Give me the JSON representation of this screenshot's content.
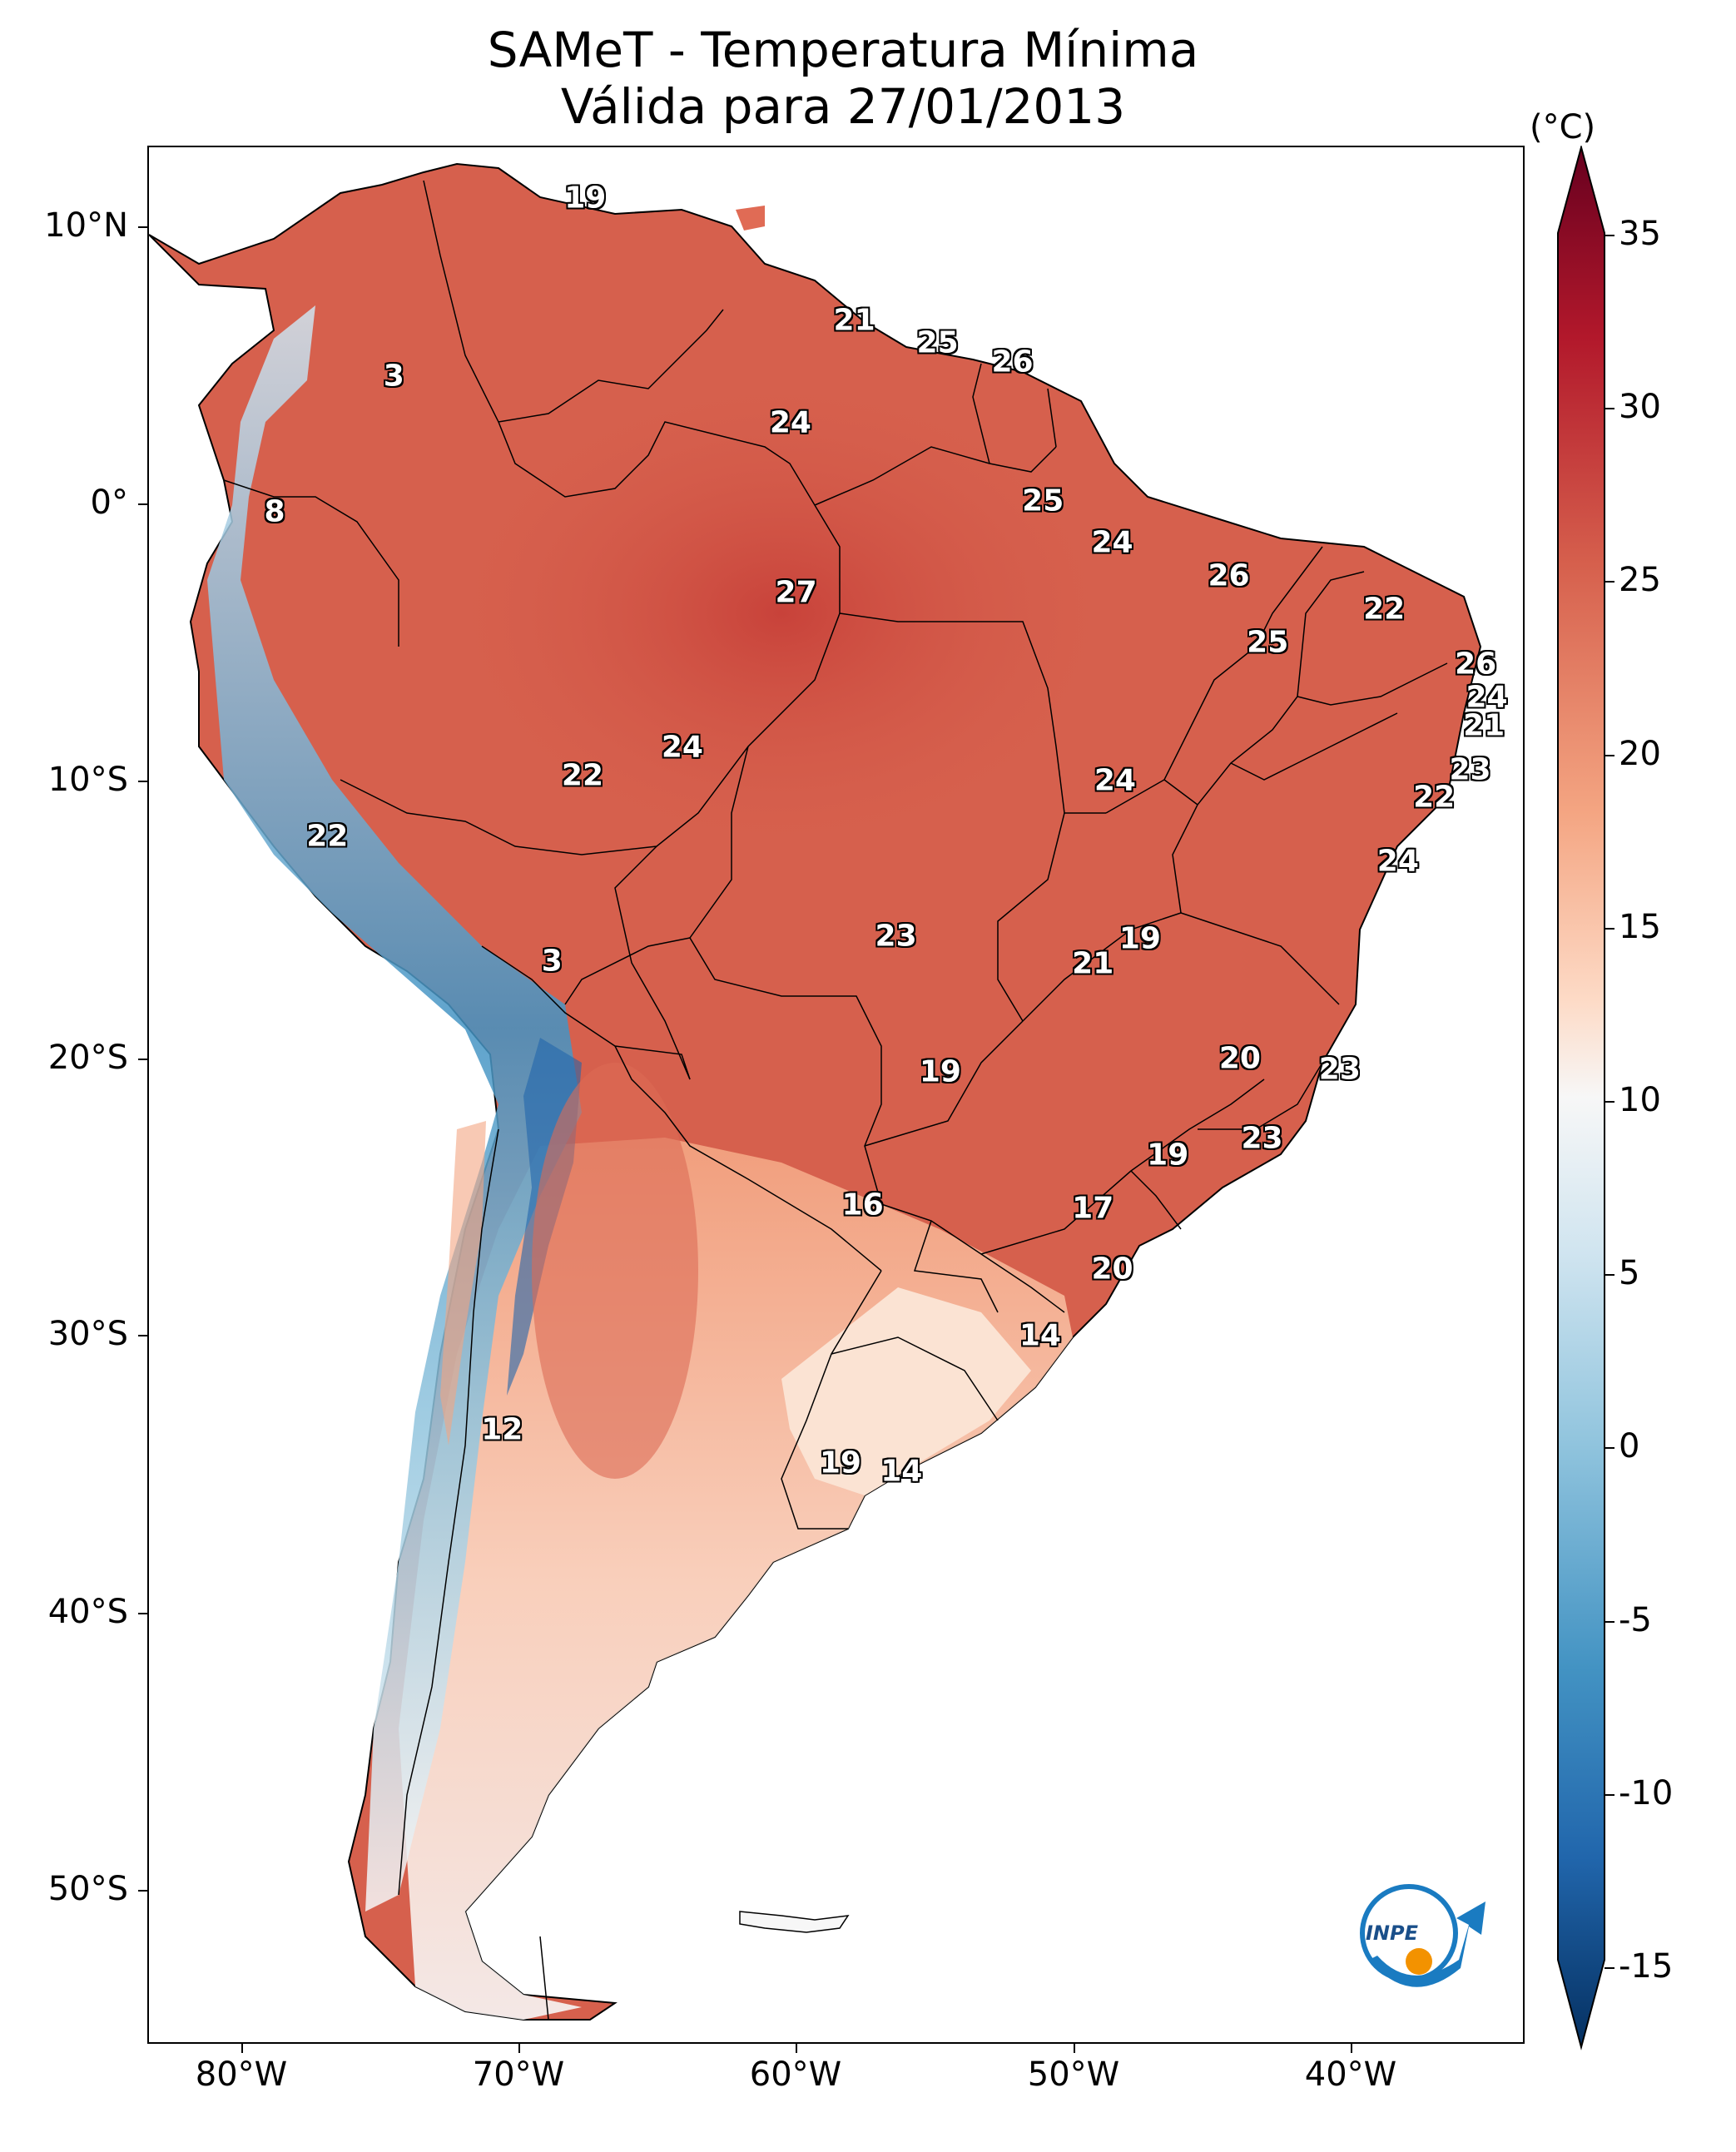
{
  "title": {
    "line1": "SAMeT - Temperatura Mínima",
    "line2": "Válida para 27/01/2013"
  },
  "axes": {
    "lat_labels": [
      "10°N",
      "0°",
      "10°S",
      "20°S",
      "30°S",
      "40°S",
      "50°S"
    ],
    "lon_labels": [
      "80°W",
      "70°W",
      "60°W",
      "50°W",
      "40°W"
    ]
  },
  "colorbar": {
    "unit": "(°C)",
    "ticks": [
      "35",
      "30",
      "25",
      "20",
      "15",
      "10",
      "5",
      "0",
      "-5",
      "-10",
      "-15"
    ],
    "range": [
      -15,
      35
    ],
    "colors": {
      "max": "#67001f",
      "high": "#b2182b",
      "warm": "#d6604d",
      "mild": "#f4a582",
      "light": "#fddbc7",
      "neutral": "#f7f7f7",
      "cool": "#d1e5f0",
      "cold": "#92c5de",
      "colder": "#4393c3",
      "coldest": "#2166ac",
      "min": "#053061"
    }
  },
  "temperature_labels": [
    {
      "value": "19",
      "lon": -67.6,
      "lat": 11.0
    },
    {
      "value": "21",
      "lon": -57.9,
      "lat": 6.6
    },
    {
      "value": "25",
      "lon": -54.9,
      "lat": 5.8
    },
    {
      "value": "26",
      "lon": -52.2,
      "lat": 5.1
    },
    {
      "value": "3",
      "lon": -74.5,
      "lat": 4.6
    },
    {
      "value": "24",
      "lon": -60.2,
      "lat": 2.9
    },
    {
      "value": "8",
      "lon": -78.8,
      "lat": -0.3
    },
    {
      "value": "25",
      "lon": -51.1,
      "lat": 0.1
    },
    {
      "value": "24",
      "lon": -48.6,
      "lat": -1.4
    },
    {
      "value": "26",
      "lon": -44.4,
      "lat": -2.6
    },
    {
      "value": "22",
      "lon": -38.8,
      "lat": -3.8
    },
    {
      "value": "27",
      "lon": -60.0,
      "lat": -3.2
    },
    {
      "value": "25",
      "lon": -43.0,
      "lat": -5.0
    },
    {
      "value": "26",
      "lon": -35.5,
      "lat": -5.8
    },
    {
      "value": "24",
      "lon": -35.1,
      "lat": -7.0
    },
    {
      "value": "21",
      "lon": -35.2,
      "lat": -8.0
    },
    {
      "value": "24",
      "lon": -64.1,
      "lat": -8.8
    },
    {
      "value": "22",
      "lon": -67.7,
      "lat": -9.8
    },
    {
      "value": "24",
      "lon": -48.5,
      "lat": -10.0
    },
    {
      "value": "23",
      "lon": -35.7,
      "lat": -9.6
    },
    {
      "value": "22",
      "lon": -37.0,
      "lat": -10.6
    },
    {
      "value": "22",
      "lon": -76.9,
      "lat": -12.0
    },
    {
      "value": "24",
      "lon": -38.3,
      "lat": -12.9
    },
    {
      "value": "23",
      "lon": -56.4,
      "lat": -15.6
    },
    {
      "value": "19",
      "lon": -47.6,
      "lat": -15.7
    },
    {
      "value": "21",
      "lon": -49.3,
      "lat": -16.6
    },
    {
      "value": "3",
      "lon": -68.8,
      "lat": -16.5
    },
    {
      "value": "20",
      "lon": -44.0,
      "lat": -20.0
    },
    {
      "value": "19",
      "lon": -54.8,
      "lat": -20.5
    },
    {
      "value": "23",
      "lon": -40.4,
      "lat": -20.4
    },
    {
      "value": "23",
      "lon": -43.2,
      "lat": -22.9
    },
    {
      "value": "19",
      "lon": -46.6,
      "lat": -23.5
    },
    {
      "value": "16",
      "lon": -57.6,
      "lat": -25.3
    },
    {
      "value": "17",
      "lon": -49.3,
      "lat": -25.4
    },
    {
      "value": "20",
      "lon": -48.6,
      "lat": -27.6
    },
    {
      "value": "14",
      "lon": -51.2,
      "lat": -30.0
    },
    {
      "value": "12",
      "lon": -70.6,
      "lat": -33.4
    },
    {
      "value": "19",
      "lon": -58.4,
      "lat": -34.6
    },
    {
      "value": "14",
      "lon": -56.2,
      "lat": -34.9
    }
  ],
  "logo": {
    "text": "INPE"
  }
}
